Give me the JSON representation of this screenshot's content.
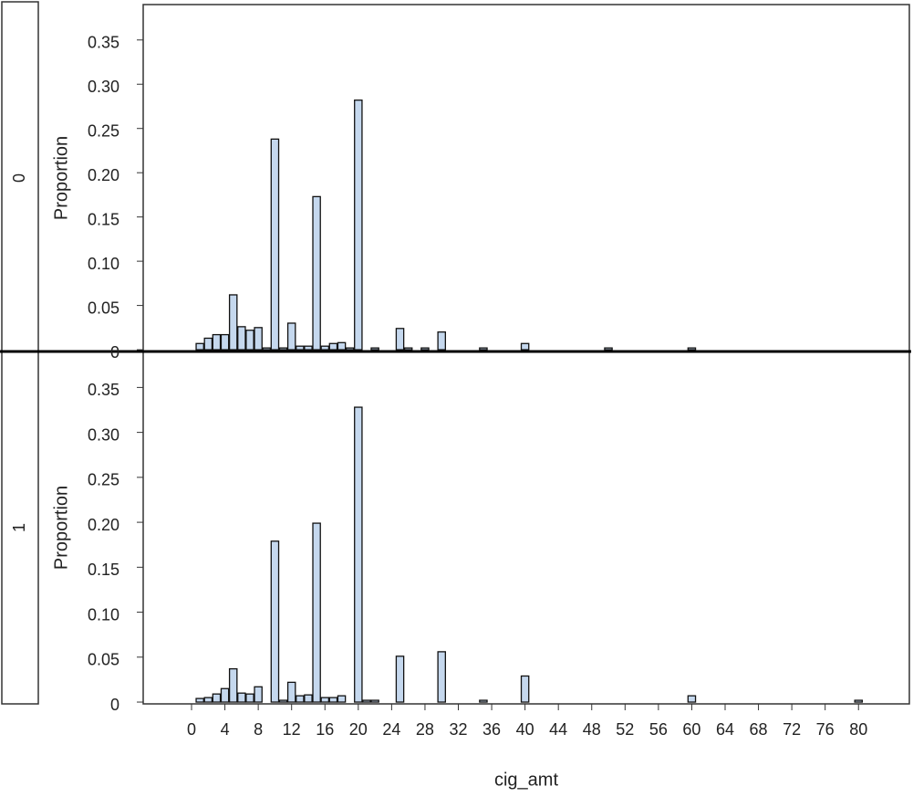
{
  "chart_data": [
    {
      "type": "bar",
      "panel_label": "0",
      "y_label": "Proportion",
      "color": "#c5d8ee",
      "x": [
        1,
        2,
        3,
        4,
        5,
        6,
        7,
        8,
        9,
        10,
        11,
        12,
        13,
        14,
        15,
        16,
        17,
        18,
        19,
        20,
        22,
        25,
        26,
        28,
        30,
        35,
        40,
        50,
        60
      ],
      "values": [
        0.007,
        0.013,
        0.017,
        0.017,
        0.062,
        0.026,
        0.022,
        0.025,
        0.002,
        0.238,
        0.002,
        0.03,
        0.004,
        0.004,
        0.173,
        0.004,
        0.007,
        0.008,
        0.002,
        0.282,
        0.002,
        0.024,
        0.002,
        0.002,
        0.02,
        0.002,
        0.007,
        0.002,
        0.002
      ],
      "xlim": [
        -5.8,
        86.1
      ],
      "ylim": [
        -0.002,
        0.39
      ],
      "yticks": [
        0,
        0.05,
        {
          "value": 0.1,
          "label": "0.10"
        },
        0.15,
        {
          "value": 0.2,
          "label": "0.20"
        },
        0.25,
        {
          "value": 0.3,
          "label": "0.30"
        },
        0.35
      ]
    },
    {
      "type": "bar",
      "panel_label": "1",
      "y_label": "Proportion",
      "x_label": "cig_amt",
      "color": "#c5d8ee",
      "x": [
        1,
        2,
        3,
        4,
        5,
        6,
        7,
        8,
        10,
        11,
        12,
        13,
        14,
        15,
        16,
        17,
        18,
        20,
        21,
        22,
        25,
        30,
        35,
        40,
        60,
        80
      ],
      "values": [
        0.004,
        0.005,
        0.009,
        0.015,
        0.037,
        0.01,
        0.009,
        0.017,
        0.179,
        0.002,
        0.022,
        0.007,
        0.008,
        0.199,
        0.005,
        0.005,
        0.007,
        0.328,
        0.002,
        0.002,
        0.051,
        0.056,
        0.002,
        0.029,
        0.007,
        0.002
      ],
      "xlim": [
        -5.8,
        86.1
      ],
      "ylim": [
        -0.002,
        0.39
      ],
      "xticks": [
        0,
        4,
        8,
        12,
        16,
        20,
        24,
        28,
        32,
        36,
        40,
        44,
        48,
        52,
        56,
        60,
        64,
        68,
        72,
        76,
        80
      ],
      "yticks": [
        0,
        0.05,
        {
          "value": 0.1,
          "label": "0.10"
        },
        0.15,
        {
          "value": 0.2,
          "label": "0.20"
        },
        0.25,
        {
          "value": 0.3,
          "label": "0.30"
        },
        0.35
      ]
    }
  ]
}
